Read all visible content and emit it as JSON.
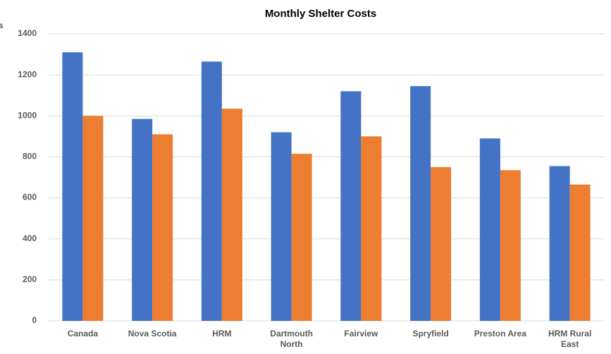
{
  "chart_data": {
    "type": "bar",
    "title": "Monthly Shelter Costs",
    "y_axis_label": "s",
    "categories": [
      "Canada",
      "Nova Scotia",
      "HRM",
      "Dartmouth North",
      "Fairview",
      "Spryfield",
      "Preston Area",
      "HRM Rural East"
    ],
    "series": [
      {
        "color": "#4472c4",
        "values": [
          1310,
          985,
          1265,
          920,
          1120,
          1145,
          890,
          755
        ]
      },
      {
        "color": "#ed7d31",
        "values": [
          1000,
          910,
          1035,
          815,
          900,
          750,
          735,
          665
        ]
      }
    ],
    "ylim": [
      0,
      1400
    ],
    "yticks": [
      0,
      200,
      400,
      600,
      800,
      1000,
      1200,
      1400
    ],
    "grid": true
  }
}
